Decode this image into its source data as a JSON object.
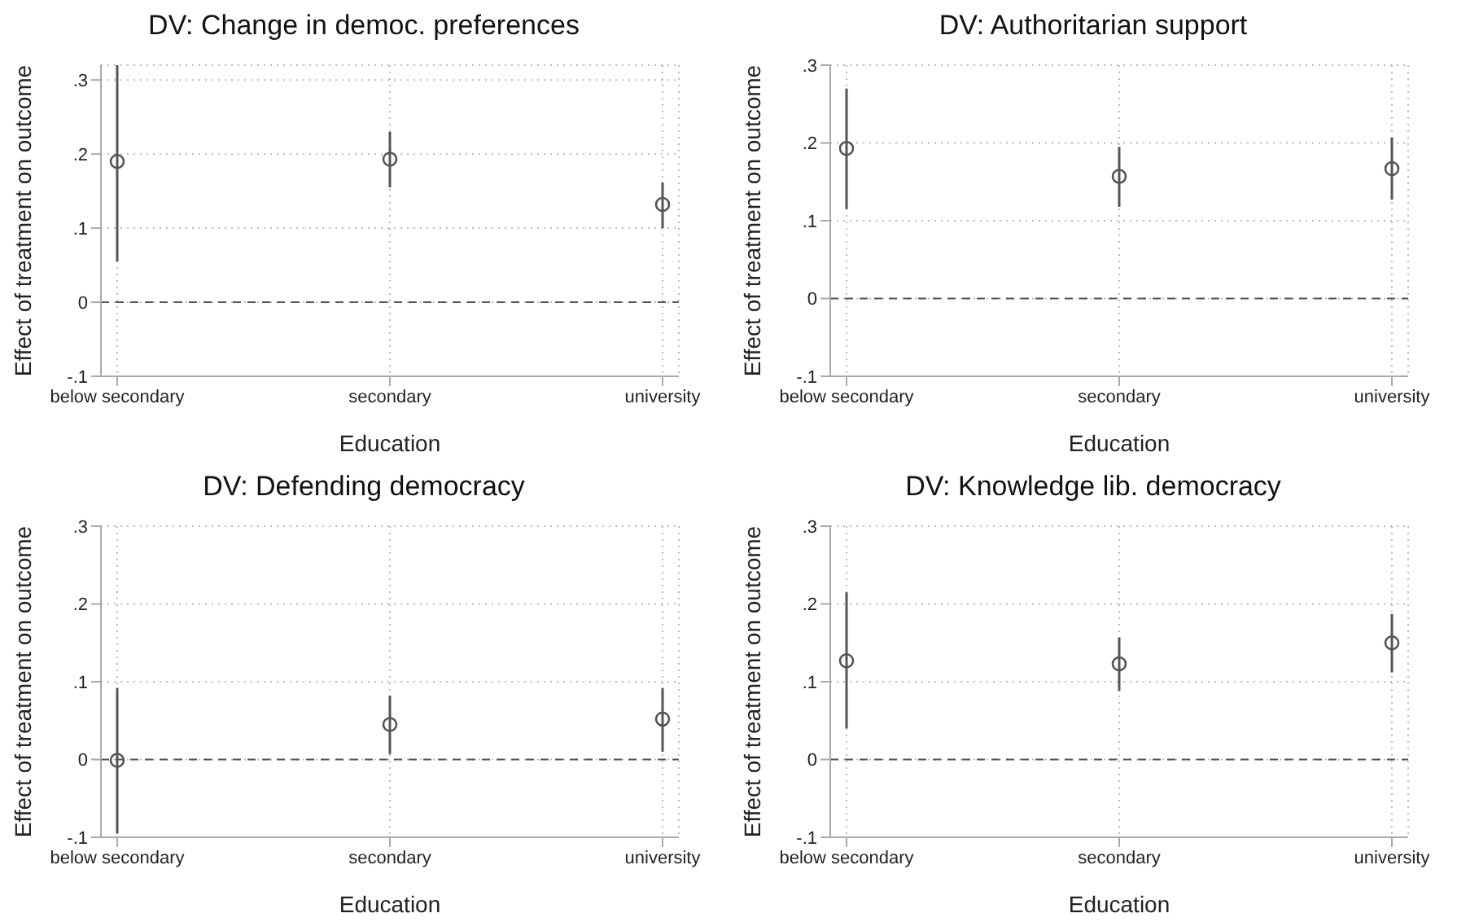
{
  "chart_data": [
    {
      "type": "scatter",
      "title": "DV: Change in democ. preferences",
      "xlabel": "Education",
      "ylabel": "Effect of treatment on outcome",
      "categories": [
        "below secondary",
        "secondary",
        "university"
      ],
      "values": [
        0.19,
        0.193,
        0.132
      ],
      "errors": [
        [
          0.055,
          0.32
        ],
        [
          0.155,
          0.23
        ],
        [
          0.1,
          0.162
        ]
      ],
      "color": "#555555",
      "marker": "circle",
      "ylim": [
        -0.1,
        0.32
      ],
      "yticks": [
        {
          "value": -0.1,
          "label": "-.1"
        },
        {
          "value": 0,
          "label": "0"
        },
        {
          "value": 0.1,
          "label": ".1"
        },
        {
          "value": 0.2,
          "label": ".2"
        },
        {
          "value": 0.3,
          "label": ".3"
        }
      ],
      "grid": true,
      "ref_lines": [
        {
          "axis": "y",
          "value": 0,
          "color": "#555555",
          "line_style": "dashed"
        }
      ]
    },
    {
      "type": "scatter",
      "title": "DV: Authoritarian support",
      "xlabel": "Education",
      "ylabel": "Effect of treatment on outcome",
      "categories": [
        "below secondary",
        "secondary",
        "university"
      ],
      "values": [
        0.193,
        0.157,
        0.167
      ],
      "errors": [
        [
          0.115,
          0.27
        ],
        [
          0.118,
          0.195
        ],
        [
          0.127,
          0.207
        ]
      ],
      "color": "#555555",
      "marker": "circle",
      "ylim": [
        -0.1,
        0.3
      ],
      "yticks": [
        {
          "value": -0.1,
          "label": "-.1"
        },
        {
          "value": 0,
          "label": "0"
        },
        {
          "value": 0.1,
          "label": ".1"
        },
        {
          "value": 0.2,
          "label": ".2"
        },
        {
          "value": 0.3,
          "label": ".3"
        }
      ],
      "grid": true,
      "ref_lines": [
        {
          "axis": "y",
          "value": 0,
          "color": "#555555",
          "line_style": "dashed"
        }
      ]
    },
    {
      "type": "scatter",
      "title": "DV: Defending democracy",
      "xlabel": "Education",
      "ylabel": "Effect of treatment on outcome",
      "categories": [
        "below secondary",
        "secondary",
        "university"
      ],
      "values": [
        -0.001,
        0.045,
        0.052
      ],
      "errors": [
        [
          -0.095,
          0.092
        ],
        [
          0.007,
          0.082
        ],
        [
          0.01,
          0.092
        ]
      ],
      "color": "#555555",
      "marker": "circle",
      "ylim": [
        -0.1,
        0.3
      ],
      "yticks": [
        {
          "value": -0.1,
          "label": "-.1"
        },
        {
          "value": 0,
          "label": "0"
        },
        {
          "value": 0.1,
          "label": ".1"
        },
        {
          "value": 0.2,
          "label": ".2"
        },
        {
          "value": 0.3,
          "label": ".3"
        }
      ],
      "grid": true,
      "ref_lines": [
        {
          "axis": "y",
          "value": 0,
          "color": "#555555",
          "line_style": "dashed"
        }
      ]
    },
    {
      "type": "scatter",
      "title": "DV: Knowledge lib. democracy",
      "xlabel": "Education",
      "ylabel": "Effect of treatment on outcome",
      "categories": [
        "below secondary",
        "secondary",
        "university"
      ],
      "values": [
        0.127,
        0.123,
        0.15
      ],
      "errors": [
        [
          0.04,
          0.215
        ],
        [
          0.088,
          0.157
        ],
        [
          0.112,
          0.187
        ]
      ],
      "color": "#555555",
      "marker": "circle",
      "ylim": [
        -0.1,
        0.3
      ],
      "yticks": [
        {
          "value": -0.1,
          "label": "-.1"
        },
        {
          "value": 0,
          "label": "0"
        },
        {
          "value": 0.1,
          "label": ".1"
        },
        {
          "value": 0.2,
          "label": ".2"
        },
        {
          "value": 0.3,
          "label": ".3"
        }
      ],
      "grid": true,
      "ref_lines": [
        {
          "axis": "y",
          "value": 0,
          "color": "#555555",
          "line_style": "dashed"
        }
      ]
    }
  ]
}
